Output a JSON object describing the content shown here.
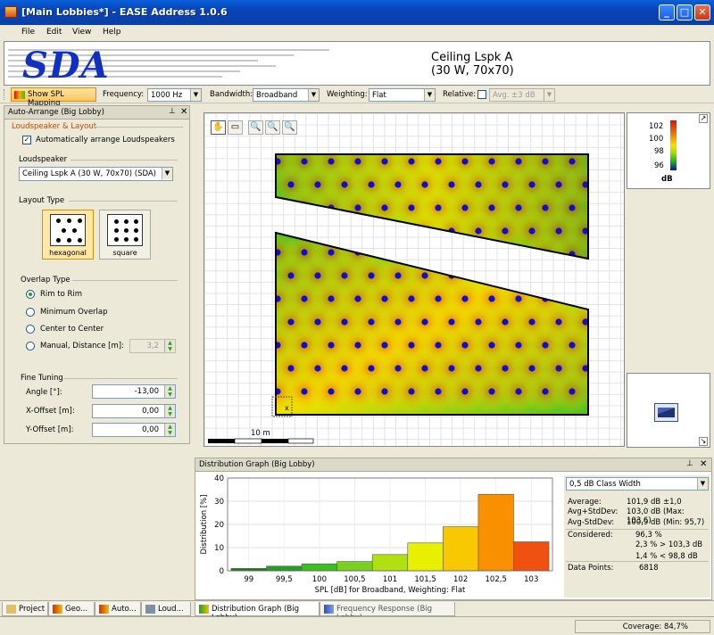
{
  "window": {
    "title": "[Main Lobbies*] - EASE Address 1.0.6"
  },
  "menu": [
    "File",
    "Edit",
    "View",
    "Help"
  ],
  "header": {
    "logo": "SDA",
    "loudspeaker_name": "Ceiling Lspk A",
    "loudspeaker_spec": "(30 W, 70x70)"
  },
  "toolbar": {
    "show_spl": "Show SPL Mapping",
    "frequency_label": "Frequency:",
    "frequency_value": "1000 Hz",
    "bandwidth_label": "Bandwidth:",
    "bandwidth_value": "Broadband",
    "weighting_label": "Weighting:",
    "weighting_value": "Flat",
    "relative_label": "Relative:",
    "relative_value": "Avg. ±3 dB"
  },
  "left_panel": {
    "title": "Auto-Arrange (Big Lobby)",
    "section_loudspeaker_layout": "Loudspeaker & Layout",
    "auto_arrange_label": "Automatically arrange Loudspeakers",
    "auto_arrange_checked": true,
    "loudspeaker_label": "Loudspeaker",
    "loudspeaker_value": "Ceiling Lspk A (30 W, 70x70) (SDA)",
    "layout_type_label": "Layout Type",
    "layout_options": [
      "hexagonal",
      "square"
    ],
    "layout_selected": "hexagonal",
    "overlap_type_label": "Overlap Type",
    "overlap_options": [
      "Rim to Rim",
      "Minimum Overlap",
      "Center to Center",
      "Manual, Distance [m]:"
    ],
    "overlap_selected": 0,
    "manual_distance": "3,2",
    "fine_tuning_label": "Fine Tuning",
    "angle_label": "Angle [°]:",
    "angle_value": "-13,00",
    "xoffset_label": "X-Offset [m]:",
    "xoffset_value": "0,00",
    "yoffset_label": "Y-Offset [m]:",
    "yoffset_value": "0,00"
  },
  "map": {
    "scale_label": "10 m",
    "legend": {
      "ticks": [
        "102",
        "100",
        "98",
        "96"
      ],
      "unit": "dB",
      "colors": [
        "#d81010",
        "#f08800",
        "#f8e000",
        "#a0e000",
        "#20b020",
        "#1010a0"
      ]
    }
  },
  "distribution": {
    "title": "Distribution Graph (Big Lobby)",
    "class_width": "0,5 dB Class Width",
    "stats": {
      "average_label": "Average:",
      "average_value": "101,9 dB ±1,0",
      "avg_plus_label": "Avg+StdDev:",
      "avg_plus_value": "103,0 dB (Max: 103,6)",
      "avg_minus_label": "Avg-StdDev:",
      "avg_minus_value": "100,9 dB (Min: 95,7)",
      "considered_label": "Considered:",
      "considered_value": "96,3 %",
      "above_value": "2,3 % > 103,3 dB",
      "below_value": "1,4 % < 98,8 dB",
      "datapoints_label": "Data Points:",
      "datapoints_value": "6818"
    }
  },
  "chart_data": {
    "type": "bar",
    "xlabel": "SPL [dB] for Broadband, Weighting: Flat",
    "ylabel": "Distribution [%]",
    "ylim": [
      0,
      40
    ],
    "yticks": [
      "0",
      "10",
      "20",
      "30",
      "40"
    ],
    "xticks": [
      "99",
      "99,5",
      "100",
      "100,5",
      "101",
      "101,5",
      "102",
      "102,5",
      "103"
    ],
    "bins": [
      99.0,
      99.5,
      100.0,
      100.5,
      101.0,
      101.5,
      102.0,
      102.5,
      103.0
    ],
    "values": [
      1,
      2,
      3,
      4,
      7,
      12,
      19,
      33,
      12.5
    ],
    "colors": [
      "#1a7a1a",
      "#22a022",
      "#3cc020",
      "#7ad020",
      "#b0e010",
      "#e8f000",
      "#f8c800",
      "#f89000",
      "#f05010"
    ],
    "grid": true
  },
  "tabs": [
    {
      "label": "Project",
      "active": false
    },
    {
      "label": "Geo...",
      "active": false
    },
    {
      "label": "Auto...",
      "active": false
    },
    {
      "label": "Loud...",
      "active": false
    },
    {
      "label": "Distribution Graph (Big Lobby)",
      "active": true
    },
    {
      "label": "Frequency Response (Big Lobby)",
      "active": false
    }
  ],
  "status": {
    "coverage": "Coverage: 84,7%"
  }
}
